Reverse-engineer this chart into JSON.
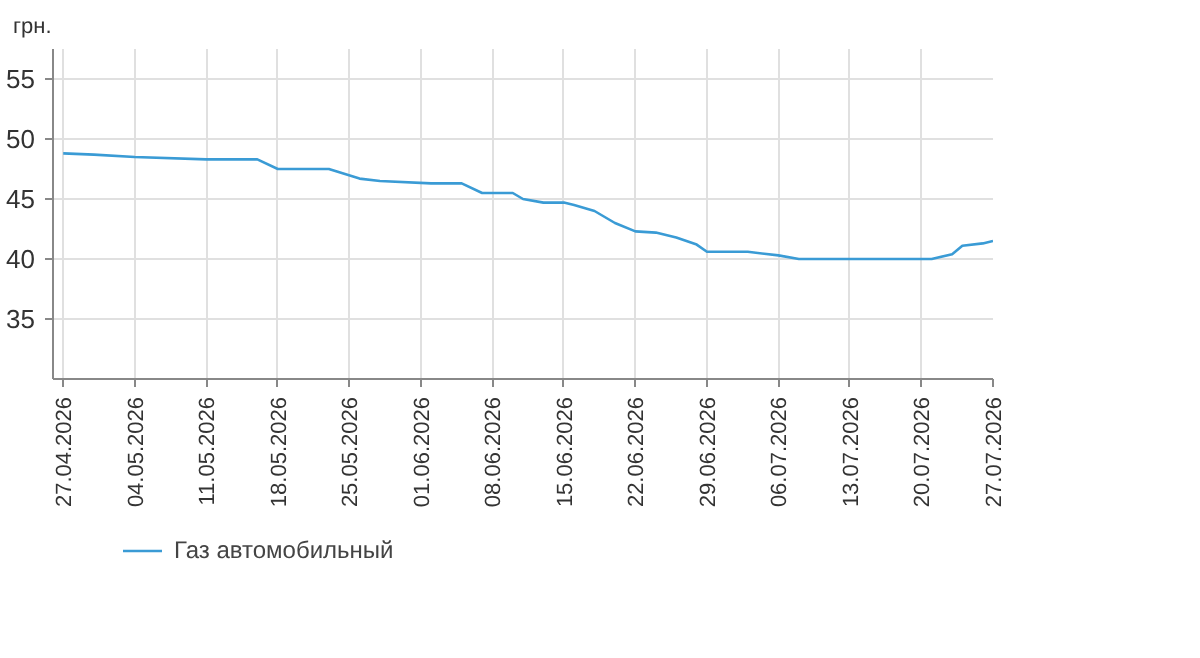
{
  "chart_data": {
    "type": "line",
    "ylabel": "грн.",
    "x": [
      "2026-04-27",
      "2026-04-30",
      "2026-05-04",
      "2026-05-11",
      "2026-05-16",
      "2026-05-18",
      "2026-05-23",
      "2026-05-26",
      "2026-05-28",
      "2026-06-02",
      "2026-06-05",
      "2026-06-07",
      "2026-06-10",
      "2026-06-11",
      "2026-06-13",
      "2026-06-15",
      "2026-06-16",
      "2026-06-18",
      "2026-06-20",
      "2026-06-22",
      "2026-06-24",
      "2026-06-26",
      "2026-06-28",
      "2026-06-29",
      "2026-07-03",
      "2026-07-06",
      "2026-07-08",
      "2026-07-21",
      "2026-07-23",
      "2026-07-24",
      "2026-07-26",
      "2026-07-27"
    ],
    "series": [
      {
        "name": "Газ автомобильный",
        "color": "#3a9bd5",
        "values": [
          48.8,
          48.7,
          48.5,
          48.3,
          48.3,
          47.5,
          47.5,
          46.7,
          46.5,
          46.3,
          46.3,
          45.5,
          45.5,
          45.0,
          44.7,
          44.7,
          44.5,
          44.0,
          43.0,
          42.3,
          42.2,
          41.8,
          41.2,
          40.6,
          40.6,
          40.3,
          40.0,
          40.0,
          40.4,
          41.1,
          41.3,
          41.5
        ]
      }
    ],
    "ylim": [
      30,
      57.5
    ],
    "yticks": [
      35,
      40,
      45,
      50,
      55
    ],
    "xlim": [
      "2026-04-26",
      "2026-07-27"
    ],
    "xticks": [
      {
        "value": "2026-04-27",
        "label": "27.04.2026"
      },
      {
        "value": "2026-05-04",
        "label": "04.05.2026"
      },
      {
        "value": "2026-05-11",
        "label": "11.05.2026"
      },
      {
        "value": "2026-05-18",
        "label": "18.05.2026"
      },
      {
        "value": "2026-05-25",
        "label": "25.05.2026"
      },
      {
        "value": "2026-06-01",
        "label": "01.06.2026"
      },
      {
        "value": "2026-06-08",
        "label": "08.06.2026"
      },
      {
        "value": "2026-06-15",
        "label": "15.06.2026"
      },
      {
        "value": "2026-06-22",
        "label": "22.06.2026"
      },
      {
        "value": "2026-06-29",
        "label": "29.06.2026"
      },
      {
        "value": "2026-07-06",
        "label": "06.07.2026"
      },
      {
        "value": "2026-07-13",
        "label": "13.07.2026"
      },
      {
        "value": "2026-07-20",
        "label": "20.07.2026"
      },
      {
        "value": "2026-07-27",
        "label": "27.07.2026"
      }
    ],
    "grid": true,
    "legend": "bottom left",
    "marker": "none",
    "line_style": "solid"
  }
}
